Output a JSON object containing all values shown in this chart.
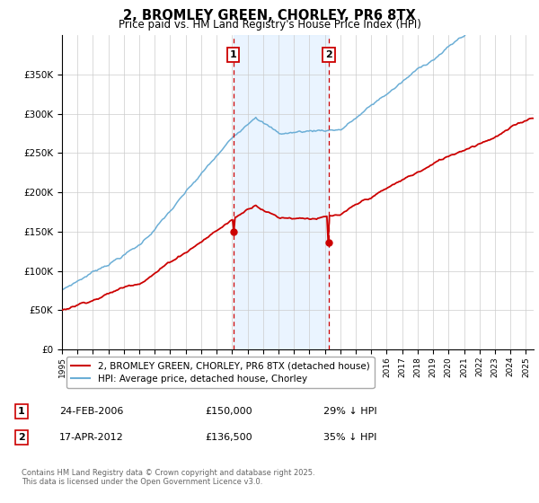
{
  "title": "2, BROMLEY GREEN, CHORLEY, PR6 8TX",
  "subtitle": "Price paid vs. HM Land Registry's House Price Index (HPI)",
  "sale1_date": "24-FEB-2006",
  "sale1_price": 150000,
  "sale1_pct": "29% ↓ HPI",
  "sale1_label": "1",
  "sale2_date": "17-APR-2012",
  "sale2_price": 136500,
  "sale2_pct": "35% ↓ HPI",
  "sale2_label": "2",
  "legend_line1": "2, BROMLEY GREEN, CHORLEY, PR6 8TX (detached house)",
  "legend_line2": "HPI: Average price, detached house, Chorley",
  "footer": "Contains HM Land Registry data © Crown copyright and database right 2025.\nThis data is licensed under the Open Government Licence v3.0.",
  "hpi_color": "#6baed6",
  "price_color": "#cc0000",
  "sale_vline_color": "#cc0000",
  "shade_color": "#ddeeff",
  "ylim": [
    0,
    400000
  ],
  "yticks": [
    0,
    50000,
    100000,
    150000,
    200000,
    250000,
    300000,
    350000
  ],
  "x_start_year": 1995,
  "x_end_year": 2025
}
